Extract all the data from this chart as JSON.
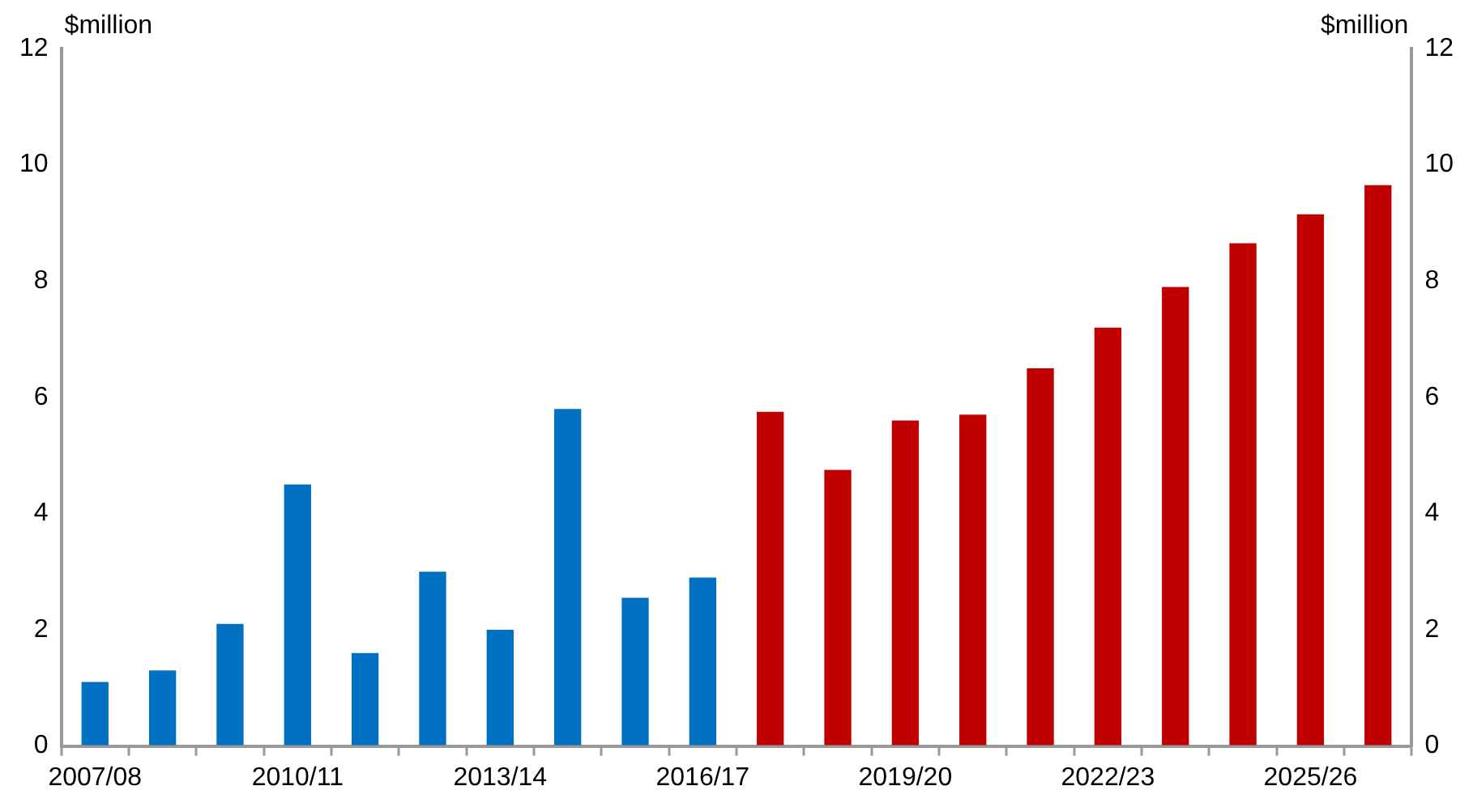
{
  "chart_data": {
    "type": "bar",
    "categories": [
      "2007/08",
      null,
      null,
      "2010/11",
      null,
      null,
      "2013/14",
      null,
      null,
      "2016/17",
      null,
      null,
      "2019/20",
      null,
      null,
      "2022/23",
      null,
      null,
      "2025/26",
      null
    ],
    "values": [
      1.1,
      1.3,
      2.1,
      4.5,
      1.6,
      3.0,
      2.0,
      5.8,
      2.55,
      2.9,
      5.75,
      4.75,
      5.6,
      5.7,
      6.5,
      7.2,
      7.9,
      8.65,
      9.15,
      9.65
    ],
    "colors": [
      "#0070c0",
      "#0070c0",
      "#0070c0",
      "#0070c0",
      "#0070c0",
      "#0070c0",
      "#0070c0",
      "#0070c0",
      "#0070c0",
      "#0070c0",
      "#c00000",
      "#c00000",
      "#c00000",
      "#c00000",
      "#c00000",
      "#c00000",
      "#c00000",
      "#c00000",
      "#c00000",
      "#c00000"
    ],
    "ylabel": "$million",
    "y2label": "$million",
    "ylim": [
      0,
      12
    ],
    "yticks": [
      0,
      2,
      4,
      6,
      8,
      10,
      12
    ],
    "y2lim": [
      0,
      12
    ],
    "y2ticks": [
      0,
      2,
      4,
      6,
      8,
      10,
      12
    ],
    "grid": false,
    "legend": false
  }
}
